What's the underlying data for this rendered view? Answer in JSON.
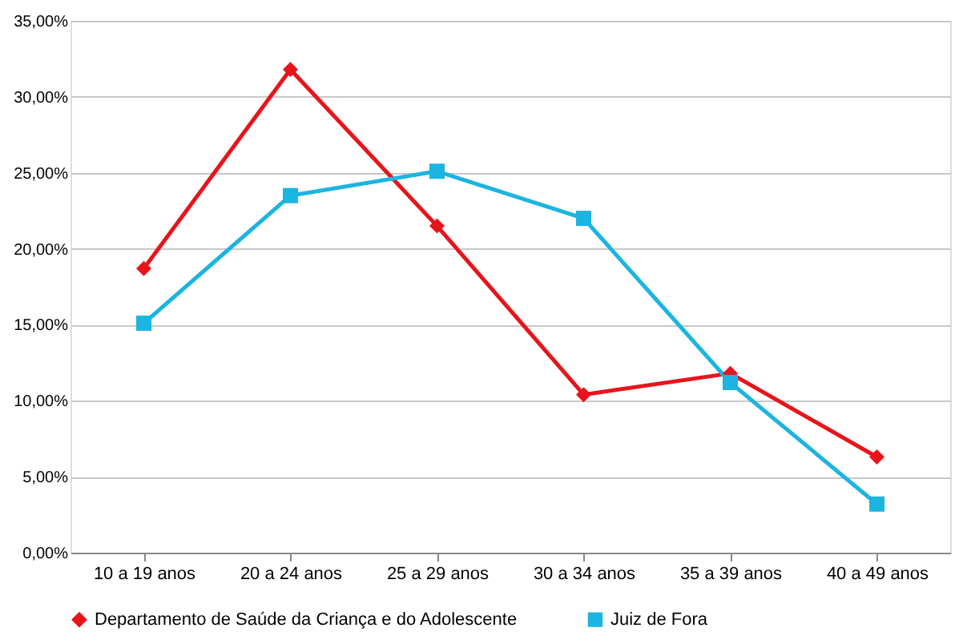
{
  "chart_data": {
    "type": "line",
    "categories": [
      "10 a 19 anos",
      "20 a 24 anos",
      "25 a 29 anos",
      "30 a 34 anos",
      "35 a 39 anos",
      "40 a 49 anos"
    ],
    "series": [
      {
        "name": "Departamento de Saúde da Criança e do Adolescente",
        "color": "#e8141b",
        "marker": "diamond",
        "values": [
          18.7,
          31.8,
          21.5,
          10.4,
          11.8,
          6.3
        ]
      },
      {
        "name": "Juiz de Fora",
        "color": "#1cb4e0",
        "marker": "square",
        "values": [
          15.1,
          23.5,
          25.1,
          22.0,
          11.2,
          3.2
        ]
      }
    ],
    "ylim": [
      0,
      35
    ],
    "yticks": [
      {
        "value": 0,
        "label": "0,00%"
      },
      {
        "value": 5,
        "label": "5,00%"
      },
      {
        "value": 10,
        "label": "10,00%"
      },
      {
        "value": 15,
        "label": "15,00%"
      },
      {
        "value": 20,
        "label": "20,00%"
      },
      {
        "value": 25,
        "label": "25,00%"
      },
      {
        "value": 30,
        "label": "30,00%"
      },
      {
        "value": 35,
        "label": "35,00%"
      }
    ],
    "grid": "y",
    "legend": "bottom",
    "line_style": "solid"
  }
}
